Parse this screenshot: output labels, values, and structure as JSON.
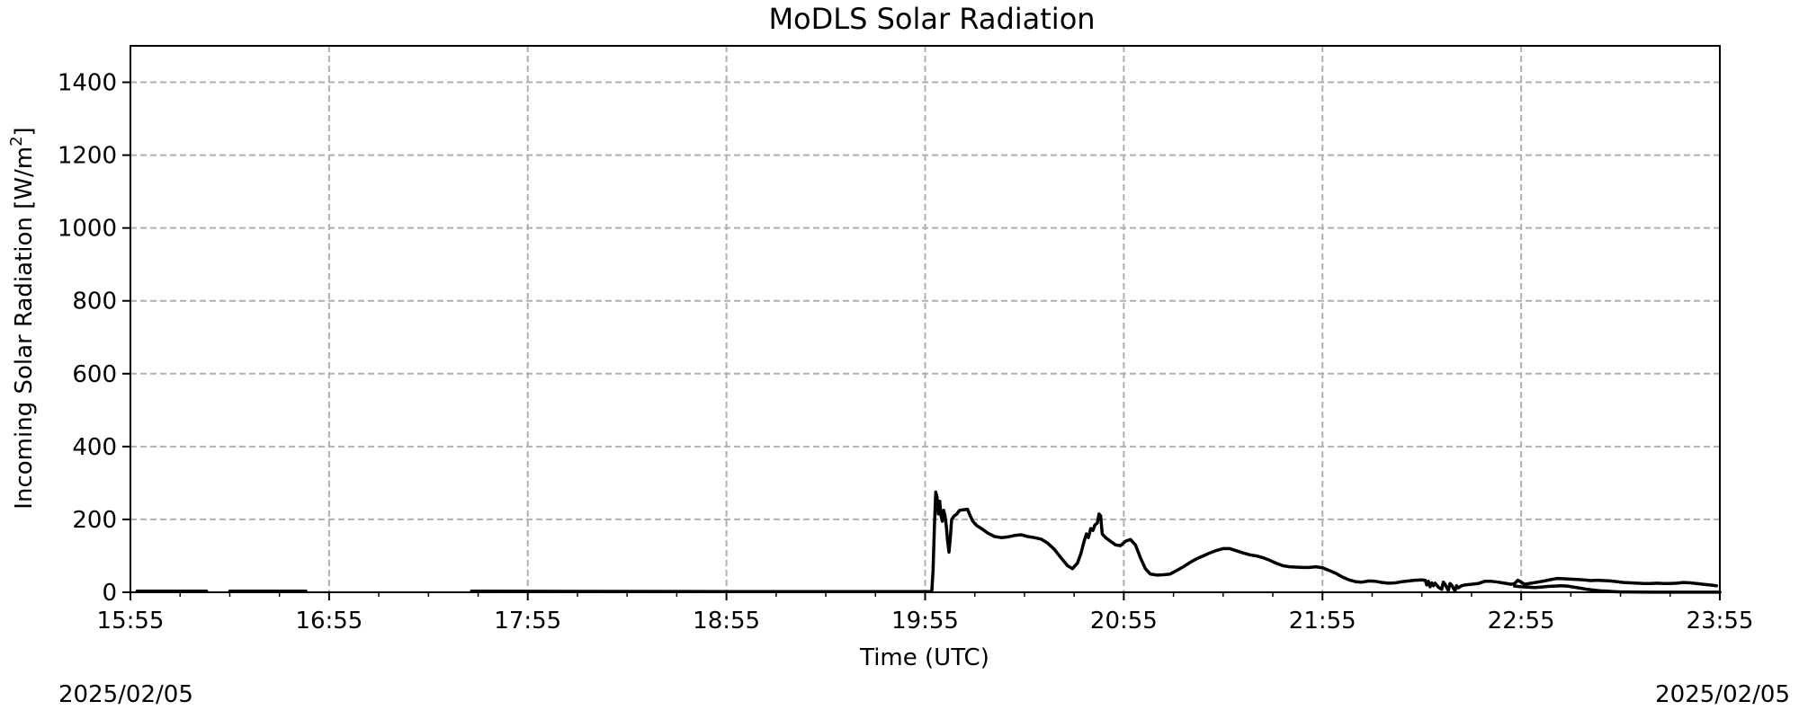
{
  "chart_data": {
    "type": "line",
    "title": "MoDLS Solar Radiation",
    "xlabel": "Time (UTC)",
    "ylabel_main": "Incoming Solar Radiation [W/m",
    "ylabel_sup": "2",
    "ylabel_end": "]",
    "xlim": [
      0,
      480
    ],
    "ylim": [
      0,
      1500
    ],
    "yticks": [
      0,
      200,
      400,
      600,
      800,
      1000,
      1200,
      1400
    ],
    "xticks": [
      0,
      60,
      120,
      180,
      240,
      300,
      360,
      420,
      480
    ],
    "xtick_labels": [
      "15:55",
      "16:55",
      "17:55",
      "18:55",
      "19:55",
      "20:55",
      "21:55",
      "22:55",
      "23:55"
    ],
    "x_minor_step": 15,
    "grid": true,
    "line_color": "#000000",
    "series": [
      {
        "segments": [
          [
            [
              2,
              3
            ],
            [
              23,
              3
            ]
          ],
          [
            [
              30,
              3
            ],
            [
              53,
              3
            ]
          ],
          [
            [
              103,
              3
            ],
            [
              180,
              2
            ],
            [
              240,
              2
            ],
            [
              242,
              2
            ]
          ],
          [
            [
              242,
              2
            ],
            [
              242.4,
              60
            ],
            [
              242.8,
              180
            ],
            [
              243.2,
              275
            ],
            [
              243.6,
              260
            ],
            [
              244,
              215
            ],
            [
              244.4,
              250
            ],
            [
              244.8,
              210
            ],
            [
              245.2,
              195
            ],
            [
              245.6,
              225
            ],
            [
              246,
              210
            ],
            [
              246.4,
              180
            ],
            [
              246.8,
              140
            ],
            [
              247.2,
              110
            ],
            [
              247.6,
              150
            ],
            [
              248,
              200
            ],
            [
              248.8,
              210
            ],
            [
              249.6,
              215
            ],
            [
              250.4,
              225
            ],
            [
              251.2,
              226
            ],
            [
              252,
              227
            ],
            [
              252.8,
              228
            ],
            [
              253.6,
              210
            ],
            [
              254.4,
              195
            ],
            [
              255.6,
              183
            ],
            [
              257,
              175
            ],
            [
              259,
              162
            ],
            [
              261,
              153
            ],
            [
              263,
              150
            ],
            [
              265,
              152
            ],
            [
              267,
              156
            ],
            [
              269,
              158
            ],
            [
              271,
              153
            ],
            [
              273,
              150
            ],
            [
              275,
              146
            ],
            [
              277,
              135
            ],
            [
              279,
              118
            ],
            [
              281,
              95
            ],
            [
              283,
              73
            ],
            [
              284.5,
              65
            ],
            [
              286,
              80
            ],
            [
              287,
              105
            ],
            [
              288,
              140
            ],
            [
              288.7,
              160
            ],
            [
              289.3,
              150
            ],
            [
              290,
              175
            ],
            [
              290.7,
              170
            ],
            [
              291.3,
              185
            ],
            [
              292,
              190
            ],
            [
              292.5,
              215
            ],
            [
              293,
              210
            ],
            [
              293.5,
              160
            ],
            [
              294.5,
              150
            ],
            [
              296,
              140
            ],
            [
              297.5,
              130
            ],
            [
              299,
              128
            ],
            [
              300.5,
              140
            ],
            [
              302,
              145
            ],
            [
              303.5,
              130
            ],
            [
              305,
              95
            ],
            [
              306.5,
              65
            ],
            [
              308,
              50
            ],
            [
              310,
              47
            ],
            [
              312,
              48
            ],
            [
              314,
              50
            ],
            [
              316,
              60
            ],
            [
              318,
              70
            ],
            [
              320,
              82
            ],
            [
              322,
              92
            ],
            [
              324,
              100
            ],
            [
              326,
              108
            ],
            [
              328,
              115
            ],
            [
              330,
              120
            ],
            [
              332,
              120
            ],
            [
              334,
              114
            ],
            [
              336,
              108
            ],
            [
              338,
              103
            ],
            [
              340,
              100
            ],
            [
              342,
              95
            ],
            [
              344,
              88
            ],
            [
              346,
              80
            ],
            [
              348,
              73
            ],
            [
              350,
              70
            ],
            [
              352,
              69
            ],
            [
              354,
              68
            ],
            [
              356,
              68
            ],
            [
              358,
              70
            ],
            [
              360,
              67
            ],
            [
              362,
              60
            ],
            [
              364,
              52
            ],
            [
              366,
              42
            ],
            [
              368,
              34
            ],
            [
              370,
              29
            ],
            [
              372,
              28
            ],
            [
              374,
              31
            ],
            [
              376,
              30
            ],
            [
              378,
              27
            ],
            [
              380,
              25
            ],
            [
              382,
              26
            ],
            [
              384,
              29
            ],
            [
              386,
              31
            ],
            [
              388,
              33
            ],
            [
              390,
              34
            ],
            [
              391,
              33
            ],
            [
              391.5,
              20
            ],
            [
              392,
              30
            ],
            [
              392.5,
              15
            ],
            [
              393,
              26
            ],
            [
              393.5,
              18
            ],
            [
              394,
              25
            ],
            [
              395,
              14
            ],
            [
              396,
              8
            ],
            [
              396.5,
              28
            ],
            [
              397,
              22
            ],
            [
              398,
              5
            ],
            [
              398.5,
              24
            ],
            [
              399,
              20
            ],
            [
              400,
              4
            ],
            [
              400.5,
              18
            ],
            [
              401,
              12
            ],
            [
              402,
              18
            ],
            [
              403,
              20
            ],
            [
              405,
              22
            ],
            [
              407,
              24
            ],
            [
              409,
              30
            ],
            [
              411,
              30
            ],
            [
              413,
              28
            ],
            [
              415,
              25
            ],
            [
              417,
              22
            ],
            [
              418,
              24
            ],
            [
              419,
              33
            ],
            [
              420,
              28
            ],
            [
              421,
              22
            ],
            [
              423,
              25
            ],
            [
              425,
              28
            ],
            [
              427,
              31
            ],
            [
              429,
              35
            ],
            [
              431,
              38
            ],
            [
              433,
              37
            ],
            [
              435,
              36
            ],
            [
              437,
              35
            ],
            [
              439,
              34
            ],
            [
              441,
              32
            ],
            [
              443,
              33
            ],
            [
              445,
              32
            ],
            [
              447,
              31
            ],
            [
              449,
              29
            ],
            [
              451,
              27
            ],
            [
              453,
              26
            ],
            [
              455,
              25
            ],
            [
              457,
              24
            ],
            [
              459,
              24
            ],
            [
              461,
              25
            ],
            [
              463,
              24
            ],
            [
              465,
              24
            ],
            [
              467,
              25
            ],
            [
              469,
              27
            ],
            [
              471,
              26
            ],
            [
              473,
              24
            ],
            [
              475,
              22
            ],
            [
              477,
              20
            ],
            [
              479,
              18
            ]
          ],
          [
            [
              418,
              17
            ],
            [
              420,
              15
            ],
            [
              422,
              14
            ],
            [
              424,
              13
            ],
            [
              426,
              14
            ],
            [
              428,
              16
            ],
            [
              430,
              17
            ],
            [
              432,
              18
            ],
            [
              434,
              17
            ],
            [
              436,
              14
            ],
            [
              438,
              11
            ],
            [
              440,
              8
            ],
            [
              442,
              6
            ],
            [
              444,
              4
            ],
            [
              446,
              3
            ],
            [
              448,
              2
            ],
            [
              450,
              1
            ],
            [
              452,
              1
            ],
            [
              455,
              0.5
            ],
            [
              460,
              0.3
            ],
            [
              470,
              0.2
            ],
            [
              480,
              0.2
            ]
          ]
        ]
      }
    ]
  },
  "footer": {
    "date_left": "2025/02/05",
    "date_right": "2025/02/05"
  }
}
